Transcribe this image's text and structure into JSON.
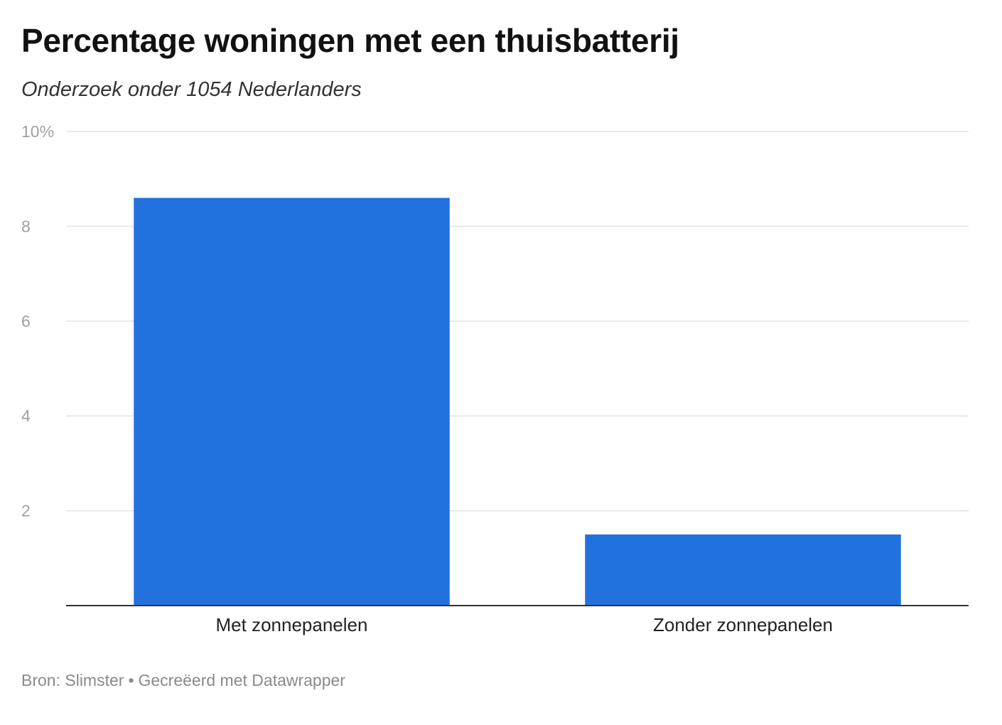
{
  "header": {
    "title": "Percentage woningen met een thuisbatterij",
    "subtitle": "Onderzoek onder 1054 Nederlanders"
  },
  "footer": {
    "source": "Bron: Slimster",
    "separator": "•",
    "credit": "Gecreëerd met Datawrapper"
  },
  "colors": {
    "bar": "#2272DE",
    "grid": "#e3e3e3",
    "baseline": "#333333"
  },
  "chart_data": {
    "type": "bar",
    "categories": [
      "Met zonnepanelen",
      "Zonder zonnepanelen"
    ],
    "values": [
      8.6,
      1.5
    ],
    "ylim": [
      0,
      10
    ],
    "yticks": [
      2,
      4,
      6,
      8,
      10
    ],
    "ytick_labels": [
      "2",
      "4",
      "6",
      "8",
      "10%"
    ],
    "grid": true,
    "legend": "none",
    "xlabel": "",
    "ylabel": ""
  }
}
